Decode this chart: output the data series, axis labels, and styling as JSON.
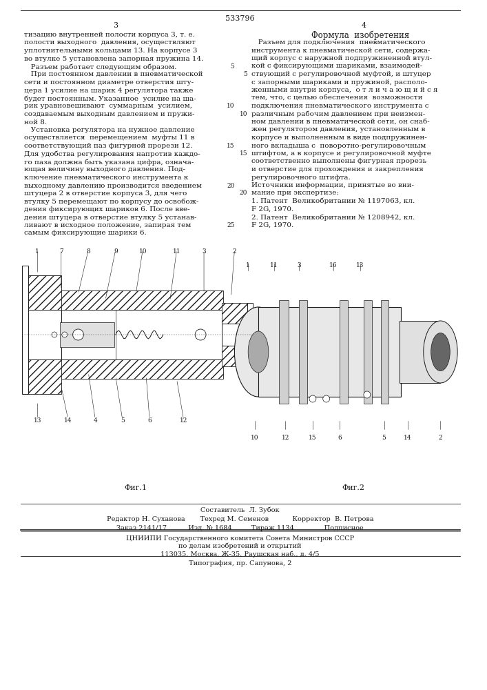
{
  "patent_number": "533796",
  "page_left": "3",
  "page_right": "4",
  "bg_color": "#ffffff",
  "text_color": "#1a1a1a",
  "font_size_body": 7.5,
  "font_size_small": 6.5,
  "font_size_header": 8.5,
  "left_column_text": [
    "тизацию внутренней полости корпуса 3, т. е.",
    "полости выходного  давления, осуществляют",
    "уплотнительными кольцами 13. На корпусе 3",
    "во втулке 5 установлена запорная пружина 14.",
    "   Разъем работает следующим образом.",
    "   При постоянном давлении в пневматической",
    "сети и постоянном диаметре отверстия шту-",
    "цера 1 усилие на шарик 4 регулятора также",
    "будет постоянным. Указанное  усилие на ша-",
    "рик уравновешивают  суммарным  усилием,",
    "создаваемым выходным давлением и пружи-",
    "ной 8.",
    "   Установка регулятора на нужное давление",
    "осуществляется  перемещением  муфты 11 в",
    "соответствующий паз фигурной прорези 12.",
    "Для удобства регулирования напротив каждо-",
    "го паза должна быть указана цифра, означа-",
    "ющая величину выходного давления. Под-",
    "ключение пневматического инструмента к",
    "выходному давлению производится введением",
    "штуцера 2 в отверстие корпуса 3, для чего",
    "втулку 5 перемещают по корпусу до освобож-",
    "дения фиксирующих шариков 6. После вве-",
    "дения штуцера в отверстие втулку 5 устанав-",
    "ливают в исходное положение, запирая тем",
    "самым фиксирующие шарики 6."
  ],
  "right_column_header": "Формула  изобретения",
  "right_column_text": [
    "   Разъем для подключения  пневматического",
    "инструмента к пневматической сети, содержа-",
    "щий корпус с наружной подпружиненной втул-",
    "кой с фиксирующими шариками, взаимодей-",
    "ствующий с регулировочной муфтой, и штуцер",
    "с запорными шариками и пружиной, располо-",
    "женными внутри корпуса,  о т л и ч а ю щ и й с я",
    "тем, что, с целью обеспечения  возможности",
    "подключения пневматического инструмента с",
    "различным рабочим давлением при неизмен-",
    "ном давлении в пневматической сети, он снаб-",
    "жен регулятором давления, установленным в",
    "корпусе и выполненным в виде подпружинен-",
    "ного вкладыша с  поворотно-регулировочным",
    "штифтом, а в корпусе и регулировочной муфте",
    "соответственно выполнены фигурная прорезь",
    "и отверстие для прохождения и закрепления",
    "регулировочного штифта."
  ],
  "sources_header": "Источники информации, принятые во вни-",
  "sources_header2": "мание при экспертизе:",
  "sources": [
    "1. Патент  Великобритании № 1197063, кл.",
    "F 2G, 1970.",
    "2. Патент  Великобритании № 1208942, кл.",
    "F 2G, 1970."
  ],
  "bottom_bar": [
    "Составитель  Л. Зубок",
    "Редактор Н. Суханова       Техред М. Семенов           Корректор  В. Петрова",
    "Заказ 2141/17          Изд. № 1684         Тираж 1134              Подписное",
    "ЦНИИПИ Государственного комитета Совета Министров СССР",
    "по делам изобретений и открытий",
    "113035, Москва, Ж-35, Раушская наб., д. 4/5",
    "Типография, пр. Сапунова, 2"
  ],
  "fig1_label": "Фиг.1",
  "fig2_label": "Фиг.2",
  "line_numbers_left": [
    "5",
    "10",
    "15",
    "20",
    "25"
  ],
  "line_numbers_right": [
    "5",
    "10",
    "15",
    "20"
  ]
}
